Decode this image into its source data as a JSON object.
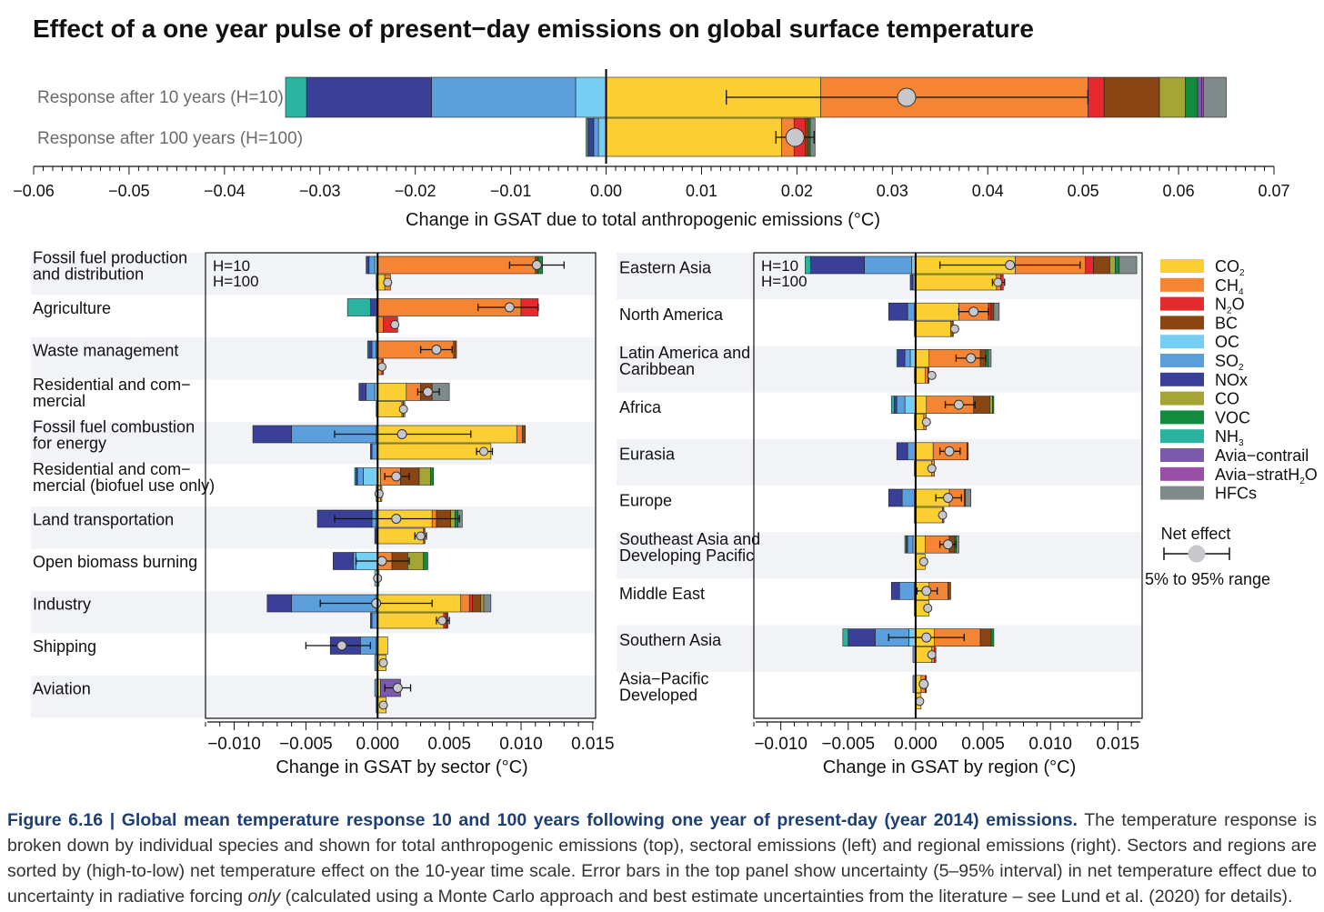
{
  "title": "Effect of a one year pulse of present−day emissions on global surface temperature",
  "caption": {
    "label": "Figure 6.16 | Global mean temperature response 10 and 100 years following one year of present-day (year 2014) emissions.",
    "text_1": " The temperature response is broken down by individual species and shown for total anthropogenic emissions (top), sectoral emissions (left) and regional emissions (right). Sectors and regions are sorted by (high-to-low) net temperature effect on the 10-year time scale. Error bars in the top panel show uncertainty (5–95% interval) in net temperature effect due to uncertainty in radiative forcing ",
    "emph": "only",
    "text_2": " (calculated using a Monte Carlo approach and best estimate uncertainties from the literature – see Lund et al. (2020) for details)."
  },
  "colors": {
    "CO2": "#FBCF32",
    "CH4": "#F58532",
    "N2O": "#E42A2D",
    "BC": "#8B4513",
    "OC": "#76CFF2",
    "SO2": "#5B9FDC",
    "NOx": "#3A3F98",
    "CO": "#A5A535",
    "VOC": "#138B3E",
    "NH3": "#2BB3A1",
    "Avia-contrail": "#7B5AAE",
    "Avia-stratH2O": "#9A4FA6",
    "HFCs": "#7F8A8A"
  },
  "legend": {
    "species": [
      {
        "key": "CO2",
        "label": "CO",
        "sub": "2"
      },
      {
        "key": "CH4",
        "label": "CH",
        "sub": "4"
      },
      {
        "key": "N2O",
        "label": "N",
        "sub": "2",
        "tail": "O"
      },
      {
        "key": "BC",
        "label": "BC"
      },
      {
        "key": "OC",
        "label": "OC"
      },
      {
        "key": "SO2",
        "label": "SO",
        "sub": "2"
      },
      {
        "key": "NOx",
        "label": "NOx"
      },
      {
        "key": "CO",
        "label": "CO"
      },
      {
        "key": "VOC",
        "label": "VOC"
      },
      {
        "key": "NH3",
        "label": "NH",
        "sub": "3"
      },
      {
        "key": "Avia-contrail",
        "label": "Avia−contrail"
      },
      {
        "key": "Avia-stratH2O",
        "label": "Avia−stratH",
        "sub": "2",
        "tail": "O"
      },
      {
        "key": "HFCs",
        "label": "HFCs"
      }
    ],
    "net_effect_label": "Net effect",
    "range_label": "5% to 95% range"
  },
  "chart_data": [
    {
      "id": "top",
      "type": "bar",
      "stacked": true,
      "orientation": "horizontal",
      "xlabel": "Change in GSAT due to total anthropogenic emissions (°C)",
      "xlim": [
        -0.06,
        0.07
      ],
      "ticks": [
        -0.06,
        -0.05,
        -0.04,
        -0.03,
        -0.02,
        -0.01,
        0.0,
        0.01,
        0.02,
        0.03,
        0.04,
        0.05,
        0.06,
        0.07
      ],
      "tick_labels": [
        "−0.06",
        "−0.05",
        "−0.04",
        "−0.03",
        "−0.02",
        "−0.01",
        "0.00",
        "0.01",
        "0.02",
        "0.03",
        "0.04",
        "0.05",
        "0.06",
        "0.07"
      ],
      "rows": [
        {
          "label": "Response after 10 years (H=10)",
          "pos": {
            "CO2": 0.0225,
            "CH4": 0.028,
            "N2O": 0.0017,
            "BC": 0.0058,
            "CO": 0.0027,
            "VOC": 0.0013,
            "Avia-contrail": 0.0004,
            "Avia-stratH2O": 0.0002,
            "HFCs": 0.0024
          },
          "neg": {
            "OC": -0.0032,
            "SO2": -0.0151,
            "NOx": -0.0131,
            "NH3": -0.0022
          },
          "net": 0.0315,
          "lo": 0.0126,
          "hi": 0.0505
        },
        {
          "label": "Response after 100 years (H=100)",
          "pos": {
            "CO2": 0.0184,
            "CH4": 0.0013,
            "N2O": 0.0012,
            "BC": 0.0003,
            "VOC": 0.0002,
            "HFCs": 0.0005
          },
          "neg": {
            "OC": -0.0008,
            "SO2": -0.0005,
            "NOx": -0.0006,
            "NH3": -0.0002
          },
          "net": 0.0198,
          "lo": 0.0178,
          "hi": 0.0218
        }
      ]
    },
    {
      "id": "sector",
      "type": "bar",
      "stacked": true,
      "orientation": "horizontal",
      "xlabel": "Change in GSAT by sector (°C)",
      "xlim": [
        -0.012,
        0.0152
      ],
      "ticks": [
        -0.01,
        -0.005,
        0.0,
        0.005,
        0.01,
        0.015
      ],
      "tick_labels": [
        "−0.010",
        "−0.005",
        "0.000",
        "0.005",
        "0.010",
        "0.015"
      ],
      "horizon_labels": [
        "H=10",
        "H=100"
      ],
      "groups": [
        {
          "label": [
            "Fossil fuel production",
            "and distribution"
          ],
          "h10": {
            "pos": {
              "CH4": 0.011,
              "BC": 0.0002,
              "VOC": 0.0003
            },
            "neg": {
              "OC": -0.0002,
              "SO2": -0.0004,
              "NOx": -0.0002
            },
            "net": 0.0111,
            "lo": 0.0092,
            "hi": 0.013
          },
          "h100": {
            "pos": {
              "CO2": 0.0005,
              "CH4": 0.0004
            },
            "neg": {
              "SO2": -0.0001
            },
            "net": 0.0007
          }
        },
        {
          "label": [
            "Agriculture"
          ],
          "h10": {
            "pos": {
              "CH4": 0.01,
              "N2O": 0.0012
            },
            "neg": {
              "NOx": -0.0005,
              "NH3": -0.0016
            },
            "net": 0.0092,
            "lo": 0.007,
            "hi": 0.0112
          },
          "h100": {
            "pos": {
              "CH4": 0.0004,
              "N2O": 0.001
            },
            "neg": {
              "NH3": -0.0001
            },
            "net": 0.0012
          }
        },
        {
          "label": [
            "Waste management"
          ],
          "h10": {
            "pos": {
              "CH4": 0.0053,
              "BC": 0.0002
            },
            "neg": {
              "OC": -0.0001,
              "SO2": -0.0003,
              "NOx": -0.0002,
              "NH3": -0.0001
            },
            "net": 0.0041,
            "lo": 0.003,
            "hi": 0.0052
          },
          "h100": {
            "pos": {
              "CH4": 0.0003,
              "N2O": 0.0001
            },
            "neg": {},
            "net": 0.0003
          }
        },
        {
          "label": [
            "Residential and com−",
            "mercial"
          ],
          "h10": {
            "pos": {
              "CO2": 0.002,
              "CH4": 0.001,
              "BC": 0.0008,
              "HFCs": 0.0012
            },
            "neg": {
              "OC": -0.0002,
              "SO2": -0.0006,
              "NOx": -0.0005
            },
            "net": 0.0035,
            "lo": 0.0028,
            "hi": 0.0043
          },
          "h100": {
            "pos": {
              "CO2": 0.0017,
              "CH4": 0.0001,
              "HFCs": 0.0001
            },
            "neg": {
              "SO2": -0.0001
            },
            "net": 0.0018
          }
        },
        {
          "label": [
            "Fossil fuel combustion",
            "for energy"
          ],
          "h10": {
            "pos": {
              "CO2": 0.0097,
              "CH4": 0.0004,
              "BC": 0.0002
            },
            "neg": {
              "OC": -0.0001,
              "SO2": -0.0059,
              "NOx": -0.0027
            },
            "net": 0.0017,
            "lo": -0.003,
            "hi": 0.0065
          },
          "h100": {
            "pos": {
              "CO2": 0.0079
            },
            "neg": {
              "SO2": -0.0004,
              "NOx": -0.0001
            },
            "net": 0.0074,
            "lo": 0.0069,
            "hi": 0.008
          }
        },
        {
          "label": [
            "Residential and com−",
            "mercial (biofuel use only)"
          ],
          "h10": {
            "pos": {
              "CO2": 0.0002,
              "CH4": 0.0014,
              "BC": 0.0013,
              "CO": 0.0008,
              "VOC": 0.0002
            },
            "neg": {
              "OC": -0.001,
              "SO2": -0.0004,
              "NOx": -0.0001,
              "NH3": -0.0001
            },
            "net": 0.0013,
            "lo": 0.0005,
            "hi": 0.0022
          },
          "h100": {
            "pos": {
              "CO2": 0.0002,
              "CH4": 0.0001
            },
            "neg": {
              "OC": -0.0001
            },
            "net": 0.0001
          }
        },
        {
          "label": [
            "Land transportation"
          ],
          "h10": {
            "pos": {
              "CO2": 0.0038,
              "CH4": 0.0003,
              "BC": 0.001,
              "CO": 0.0003,
              "VOC": 0.0002,
              "HFCs": 0.0003
            },
            "neg": {
              "OC": -0.0001,
              "SO2": -0.0003,
              "NOx": -0.0038
            },
            "net": 0.0013,
            "lo": -0.003,
            "hi": 0.0057
          },
          "h100": {
            "pos": {
              "CO2": 0.0032,
              "BC": 0.0001
            },
            "neg": {
              "NOx": -0.0002
            },
            "net": 0.003,
            "lo": 0.0026,
            "hi": 0.0034
          }
        },
        {
          "label": [
            "Open biomass burning"
          ],
          "h10": {
            "pos": {
              "CH4": 0.001,
              "BC": 0.0011,
              "CO": 0.0011,
              "VOC": 0.0003
            },
            "neg": {
              "OC": -0.0015,
              "SO2": -0.0002,
              "NOx": -0.0014
            },
            "net": 0.0003,
            "lo": -0.0015,
            "hi": 0.0022
          },
          "h100": {
            "pos": {
              "CO2": 0.0001
            },
            "neg": {
              "OC": -0.0002
            },
            "net": 0.0
          },
          "has_h100_box": true
        },
        {
          "label": [
            "Industry"
          ],
          "h10": {
            "pos": {
              "CO2": 0.0058,
              "CH4": 0.0006,
              "N2O": 0.0002,
              "BC": 0.0006,
              "CO": 0.0002,
              "HFCs": 0.0005
            },
            "neg": {
              "OC": -0.0001,
              "SO2": -0.0059,
              "NOx": -0.0017
            },
            "net": -0.0001,
            "lo": -0.004,
            "hi": 0.0038
          },
          "h100": {
            "pos": {
              "CO2": 0.0046,
              "N2O": 0.0002,
              "BC": 0.0001
            },
            "neg": {
              "SO2": -0.0004,
              "NOx": -0.0001
            },
            "net": 0.0045,
            "lo": 0.0041,
            "hi": 0.005
          }
        },
        {
          "label": [
            "Shipping"
          ],
          "h10": {
            "pos": {
              "CO2": 0.0007
            },
            "neg": {
              "OC": -0.0001,
              "SO2": -0.0011,
              "NOx": -0.0021
            },
            "net": -0.0025,
            "lo": -0.005,
            "hi": -0.0005
          },
          "h100": {
            "pos": {
              "CO2": 0.0006
            },
            "neg": {
              "SO2": -0.0002
            },
            "net": 0.0004
          }
        },
        {
          "label": [
            "Aviation"
          ],
          "h10": {
            "pos": {
              "CO2": 0.0002,
              "Avia-contrail": 0.0014
            },
            "neg": {
              "SO2": -0.0002
            },
            "net": 0.0014,
            "lo": 0.0005,
            "hi": 0.0023
          },
          "h100": {
            "pos": {
              "CO2": 0.0006
            },
            "neg": {
              "SO2": -0.0001
            },
            "net": 0.0004
          }
        }
      ]
    },
    {
      "id": "region",
      "type": "bar",
      "stacked": true,
      "orientation": "horizontal",
      "xlabel": "Change in GSAT by region (°C)",
      "xlim": [
        -0.012,
        0.0168
      ],
      "ticks": [
        -0.01,
        -0.005,
        0.0,
        0.005,
        0.01,
        0.015
      ],
      "tick_labels": [
        "−0.010",
        "−0.005",
        "0.000",
        "0.005",
        "0.010",
        "0.015"
      ],
      "horizon_labels": [
        "H=10",
        "H=100"
      ],
      "groups": [
        {
          "label": [
            "Eastern Asia"
          ],
          "h10": {
            "pos": {
              "CO2": 0.0074,
              "CH4": 0.0052,
              "N2O": 0.0006,
              "BC": 0.0012,
              "CO": 0.0004,
              "VOC": 0.0003,
              "HFCs": 0.0013
            },
            "neg": {
              "OC": -0.0003,
              "SO2": -0.0035,
              "NOx": -0.004,
              "NH3": -0.0004
            },
            "net": 0.007,
            "lo": 0.0018,
            "hi": 0.0122
          },
          "h100": {
            "pos": {
              "CO2": 0.006,
              "CH4": 0.0003,
              "N2O": 0.0002
            },
            "neg": {
              "SO2": -0.0002,
              "NOx": -0.0002
            },
            "net": 0.0061,
            "lo": 0.0057,
            "hi": 0.0066
          }
        },
        {
          "label": [
            "North America"
          ],
          "h10": {
            "pos": {
              "CO2": 0.0032,
              "CH4": 0.0022,
              "N2O": 0.0002,
              "BC": 0.0002,
              "HFCs": 0.0004
            },
            "neg": {
              "OC": -0.0001,
              "SO2": -0.0005,
              "NOx": -0.0014
            },
            "net": 0.0043,
            "lo": 0.0032,
            "hi": 0.0054
          },
          "h100": {
            "pos": {
              "CO2": 0.0026,
              "CH4": 0.0001,
              "N2O": 0.0001
            },
            "neg": {
              "SO2": -0.0001
            },
            "net": 0.0029
          }
        },
        {
          "label": [
            "Latin America and",
            "Caribbean"
          ],
          "h10": {
            "pos": {
              "CO2": 0.001,
              "CH4": 0.0038,
              "BC": 0.0004,
              "VOC": 0.0002,
              "HFCs": 0.0002
            },
            "neg": {
              "OC": -0.0004,
              "SO2": -0.0004,
              "NOx": -0.0005,
              "NH3": -0.0001
            },
            "net": 0.0041,
            "lo": 0.003,
            "hi": 0.0052
          },
          "h100": {
            "pos": {
              "CO2": 0.0007,
              "CH4": 0.0002,
              "N2O": 0.0001
            },
            "neg": {
              "OC": -0.0001
            },
            "net": 0.0012
          }
        },
        {
          "label": [
            "Africa"
          ],
          "h10": {
            "pos": {
              "CO2": 0.0008,
              "CH4": 0.0035,
              "BC": 0.0012,
              "CO": 0.0002,
              "VOC": 0.0001
            },
            "neg": {
              "OC": -0.0008,
              "SO2": -0.0006,
              "NOx": -0.0002,
              "NH3": -0.0002
            },
            "net": 0.0032,
            "lo": 0.0022,
            "hi": 0.0044
          },
          "h100": {
            "pos": {
              "CO2": 0.0006,
              "CH4": 0.0002
            },
            "neg": {
              "OC": -0.0001
            },
            "net": 0.0008
          }
        },
        {
          "label": [
            "Eurasia"
          ],
          "h10": {
            "pos": {
              "CO2": 0.0013,
              "CH4": 0.0025,
              "BC": 0.0001
            },
            "neg": {
              "SO2": -0.0006,
              "NOx": -0.0008
            },
            "net": 0.0025,
            "lo": 0.0018,
            "hi": 0.0033
          },
          "h100": {
            "pos": {
              "CO2": 0.0012,
              "CH4": 0.0002
            },
            "neg": {
              "SO2": -0.0001
            },
            "net": 0.0012
          }
        },
        {
          "label": [
            "Europe"
          ],
          "h10": {
            "pos": {
              "CO2": 0.0025,
              "CH4": 0.0011,
              "BC": 0.0001,
              "HFCs": 0.0004
            },
            "neg": {
              "OC": -0.0001,
              "SO2": -0.0009,
              "NOx": -0.001
            },
            "net": 0.0024,
            "lo": 0.0015,
            "hi": 0.0034
          },
          "h100": {
            "pos": {
              "CO2": 0.002,
              "N2O": 0.0001
            },
            "neg": {
              "SO2": -0.0001
            },
            "net": 0.002
          }
        },
        {
          "label": [
            "Southeast Asia and",
            "Developing Pacific"
          ],
          "h10": {
            "pos": {
              "CO2": 0.0007,
              "CH4": 0.0018,
              "BC": 0.0004,
              "VOC": 0.0001,
              "HFCs": 0.0002
            },
            "neg": {
              "OC": -0.0002,
              "SO2": -0.0004,
              "NOx": -0.0001,
              "NH3": -0.0001
            },
            "net": 0.0024,
            "lo": 0.0018,
            "hi": 0.003
          },
          "h100": {
            "pos": {
              "CO2": 0.0007
            },
            "neg": {},
            "net": 0.0006
          }
        },
        {
          "label": [
            "Middle East"
          ],
          "h10": {
            "pos": {
              "CO2": 0.001,
              "CH4": 0.0014,
              "BC": 0.0002
            },
            "neg": {
              "OC": -0.0001,
              "SO2": -0.0011,
              "NOx": -0.0006
            },
            "net": 0.0008,
            "lo": 0.0001,
            "hi": 0.0016
          },
          "h100": {
            "pos": {
              "CO2": 0.001
            },
            "neg": {
              "SO2": -0.0001
            },
            "net": 0.0009
          }
        },
        {
          "label": [
            "Southern Asia"
          ],
          "h10": {
            "pos": {
              "CO2": 0.0014,
              "CH4": 0.0034,
              "BC": 0.0008,
              "VOC": 0.0002
            },
            "neg": {
              "OC": -0.0005,
              "SO2": -0.0025,
              "NOx": -0.002,
              "NH3": -0.0004
            },
            "net": 0.0008,
            "lo": -0.002,
            "hi": 0.0036
          },
          "h100": {
            "pos": {
              "CO2": 0.0012,
              "CH4": 0.0002,
              "N2O": 0.0001
            },
            "neg": {
              "SO2": -0.0002
            },
            "net": 0.0012
          }
        },
        {
          "label": [
            "Asia−Pacific",
            "Developed"
          ],
          "h10": {
            "pos": {
              "CO2": 0.0004,
              "CH4": 0.0003,
              "N2O": 0.0001
            },
            "neg": {
              "SO2": -0.0002
            },
            "net": 0.0006
          },
          "h100": {
            "pos": {
              "CO2": 0.0004
            },
            "neg": {},
            "net": 0.0003
          }
        }
      ]
    }
  ]
}
